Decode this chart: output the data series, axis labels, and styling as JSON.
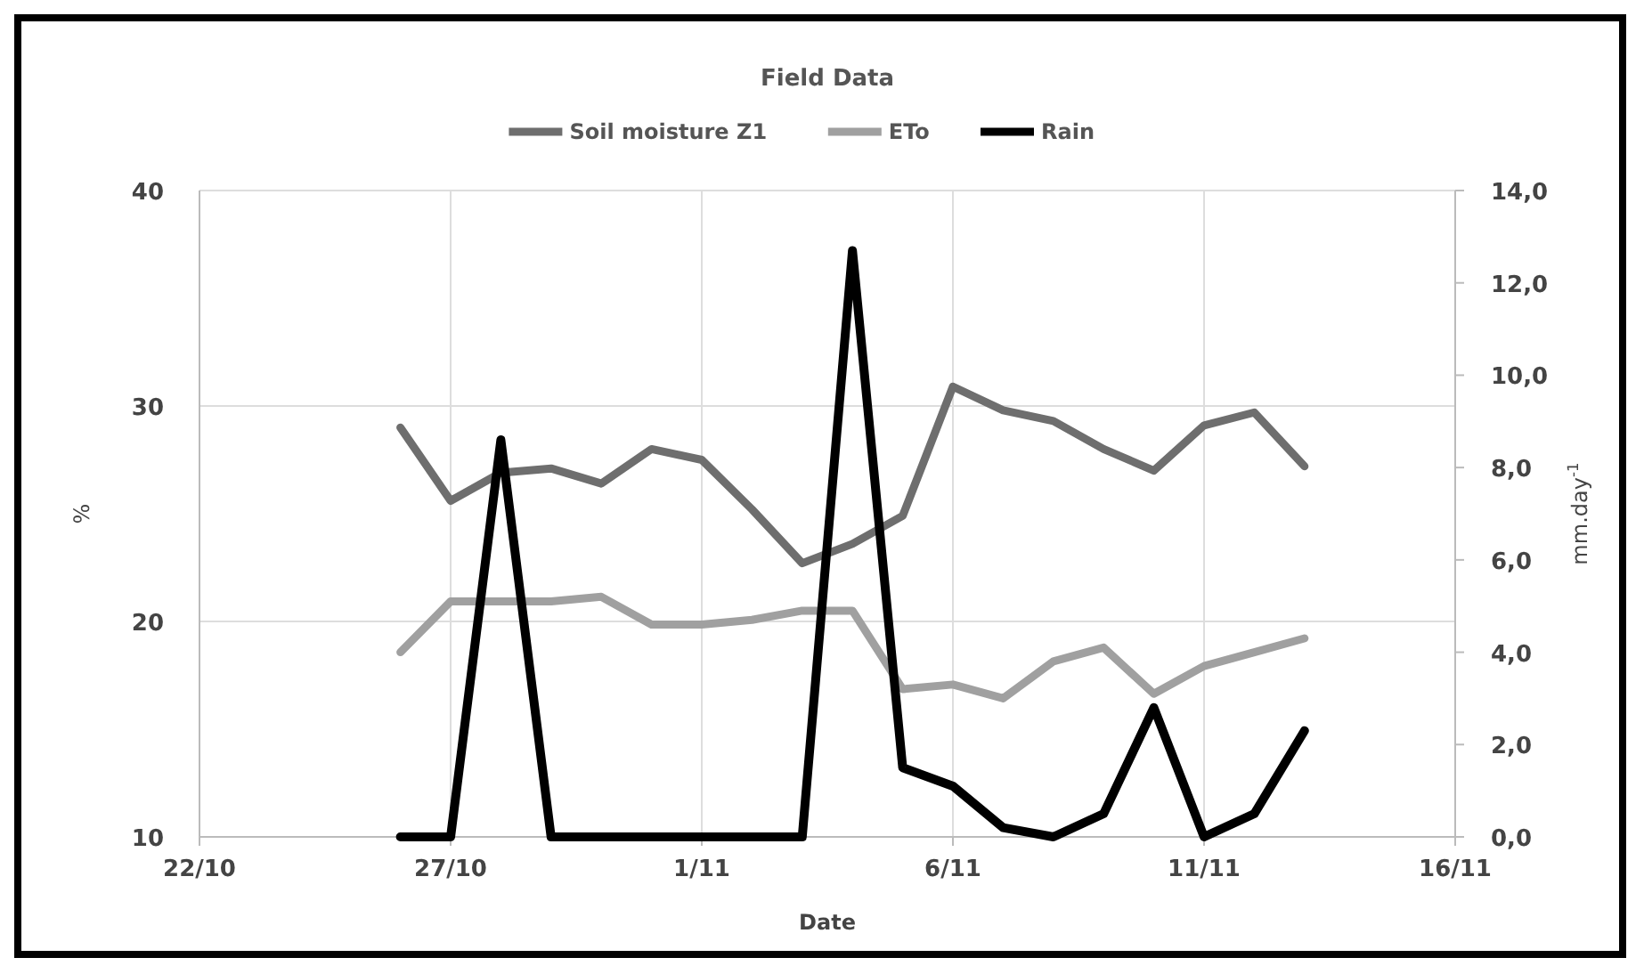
{
  "chart_data": {
    "type": "line",
    "title": "Field Data",
    "xlabel": "Date",
    "ylabel": "%",
    "y2label": "mm.day$^{-1}$",
    "x": [
      "--10-26",
      "--10-27",
      "--10-28",
      "--10-29",
      "--10-30",
      "--10-31",
      "--11-01",
      "--11-02",
      "--11-03",
      "--11-04",
      "--11-05",
      "--11-06",
      "--11-07",
      "--11-08",
      "--11-09",
      "--11-10",
      "--11-11",
      "--11-12",
      "--11-13"
    ],
    "xlim": [
      "--10-22",
      "--11-16"
    ],
    "xticks": [
      {
        "value": "--10-22",
        "label": "22/10"
      },
      {
        "value": "--10-27",
        "label": "27/10"
      },
      {
        "value": "--11-01",
        "label": "1/11"
      },
      {
        "value": "--11-06",
        "label": "6/11"
      },
      {
        "value": "--11-11",
        "label": "11/11"
      },
      {
        "value": "--11-16",
        "label": "16/11"
      }
    ],
    "ylim": [
      10,
      40
    ],
    "yticks": [
      10,
      20,
      30,
      40
    ],
    "y2lim": [
      0,
      14
    ],
    "y2ticks": [
      {
        "value": 0,
        "label": "0,0"
      },
      {
        "value": 2,
        "label": "2,0"
      },
      {
        "value": 4,
        "label": "4,0"
      },
      {
        "value": 6,
        "label": "6,0"
      },
      {
        "value": 8,
        "label": "8,0"
      },
      {
        "value": 10,
        "label": "10,0"
      },
      {
        "value": 12,
        "label": "12,0"
      },
      {
        "value": 14,
        "label": "14,0"
      }
    ],
    "grid": true,
    "legend": "top",
    "marker": "none",
    "line_style": "solid",
    "series": [
      {
        "name": "Soil moisture Z1",
        "color": "#6e6e6e",
        "values": [
          29.0,
          25.6,
          26.9,
          27.1,
          26.4,
          28.0,
          27.5,
          25.2,
          22.7,
          23.6,
          24.9,
          30.9,
          29.8,
          29.3,
          28.0,
          27.0,
          29.1,
          29.7,
          27.2
        ]
      },
      {
        "name": "ETo",
        "color": "#a0a0a0",
        "axis": "y2",
        "values": [
          4.0,
          5.1,
          5.1,
          5.1,
          5.2,
          4.6,
          4.6,
          4.7,
          4.9,
          4.9,
          3.2,
          3.3,
          3.0,
          3.8,
          4.1,
          3.1,
          3.7,
          4.0,
          4.3
        ]
      },
      {
        "name": "Rain",
        "color": "#000000",
        "axis": "y2",
        "values": [
          0,
          0,
          8.6,
          0,
          0,
          0,
          0,
          0,
          0,
          12.7,
          1.5,
          1.1,
          0.2,
          0,
          0.5,
          2.8,
          0,
          0.5,
          2.3
        ]
      }
    ]
  }
}
